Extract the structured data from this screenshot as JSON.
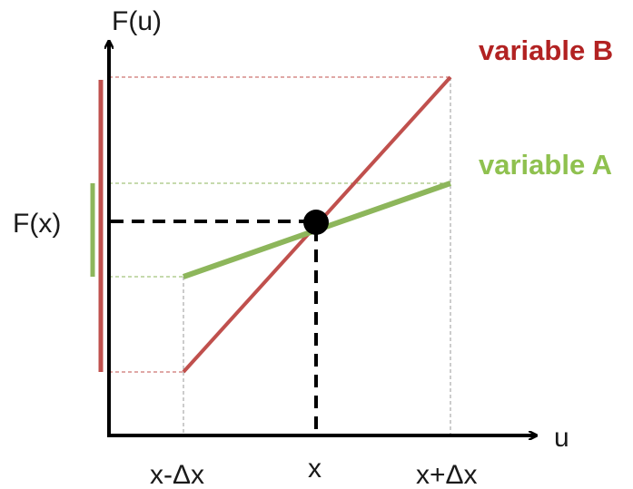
{
  "labels": {
    "y_axis_title": "F(u)",
    "x_axis_title": "u",
    "fx_label": "F(x)",
    "tick_left": "x-Δx",
    "tick_center": "x",
    "tick_right": "x+Δx"
  },
  "legend": {
    "variable_b": "variable B",
    "variable_a": "variable A"
  },
  "colors": {
    "variable_b": "#c0504d",
    "variable_a": "#8db65b",
    "axis": "#000000",
    "guide": "#999999",
    "label_b": "#b22222",
    "label_a": "#8fc14f"
  }
}
